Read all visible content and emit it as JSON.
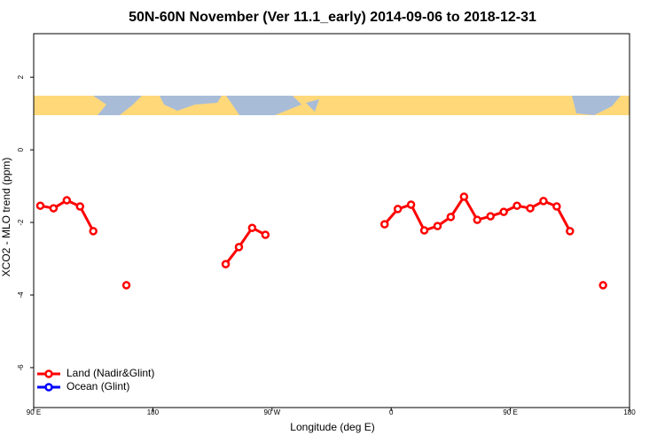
{
  "chart_data": {
    "type": "line",
    "title": "50N-60N November (Ver 11.1_early)   2014-09-06 to 2018-12-31",
    "x_label": "Longitude (deg E)",
    "y_label": "XCO2 - MLO trend (ppm)",
    "xlim": [
      90,
      540
    ],
    "ylim": [
      -7.1,
      3.2
    ],
    "xticks": [
      {
        "value": 90,
        "label": "90 E"
      },
      {
        "value": 180,
        "label": "180"
      },
      {
        "value": 270,
        "label": "90 W"
      },
      {
        "value": 360,
        "label": "0"
      },
      {
        "value": 450,
        "label": "90 E"
      },
      {
        "value": 540,
        "label": "180"
      }
    ],
    "yticks": [
      -6,
      -4,
      -2,
      0,
      2
    ],
    "legend": "bottom-left",
    "series": [
      {
        "name": "Land (Nadir&Glint)",
        "color": "#ff0000",
        "x": [
          95,
          105,
          115,
          125,
          135,
          160,
          235,
          245,
          255,
          265,
          355,
          365,
          375,
          385,
          395,
          405,
          415,
          425,
          435,
          445,
          455,
          465,
          475,
          485,
          495,
          520
        ],
        "values": [
          -1.54,
          -1.61,
          -1.39,
          -1.56,
          -2.24,
          -3.73,
          -3.15,
          -2.68,
          -2.15,
          -2.34,
          -2.05,
          -1.63,
          -1.51,
          -2.22,
          -2.1,
          -1.85,
          -1.29,
          -1.93,
          -1.83,
          -1.71,
          -1.54,
          -1.61,
          -1.41,
          -1.56,
          -2.24,
          -3.73
        ]
      },
      {
        "name": "Ocean (Glint)",
        "color": "#0000ff",
        "x": [],
        "values": []
      }
    ]
  }
}
